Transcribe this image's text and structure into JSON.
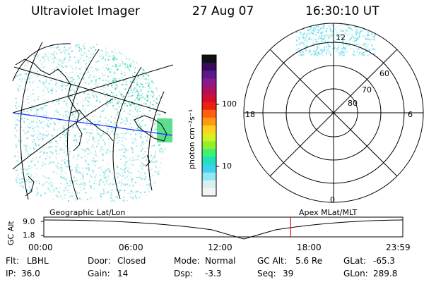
{
  "header": {
    "title": "Ultraviolet Imager",
    "date": "27 Aug 07",
    "time": "16:30:10 UT"
  },
  "colorbar": {
    "unit_label": "photon cm⁻²s⁻¹",
    "ticks": [
      "100",
      "10"
    ],
    "colors": [
      "#101010",
      "#3a0a5a",
      "#5a1a8a",
      "#8a1a8a",
      "#b01060",
      "#d01030",
      "#f02010",
      "#ff6010",
      "#ff9a10",
      "#ffd020",
      "#d8f020",
      "#90f030",
      "#40f070",
      "#20e0c0",
      "#40d0f0",
      "#90e8f0",
      "#d8f0f0",
      "#f4f4f4"
    ]
  },
  "polar": {
    "lat_labels": [
      "60",
      "70",
      "80"
    ],
    "mlt_labels": {
      "top": "12",
      "left": "18",
      "right": "6",
      "bottom": "0"
    }
  },
  "timeline": {
    "ylabel": "GC Alt",
    "ytick_top": "9.0",
    "ytick_bottom": "1.8",
    "left_caption": "Geographic Lat/Lon",
    "right_caption": "Apex MLat/MLT",
    "time_ticks": [
      "00:00",
      "06:00",
      "12:00",
      "18:00",
      "23:59"
    ],
    "current_time_fraction": 0.6876
  },
  "info": {
    "row1": [
      {
        "label": "Flt:",
        "value": "LBHL"
      },
      {
        "label": "Door:",
        "value": "Closed"
      },
      {
        "label": "Mode:",
        "value": "Normal"
      },
      {
        "label": "GC Alt:",
        "value": "5.6 Re"
      },
      {
        "label": "GLat:",
        "value": "-65.3"
      }
    ],
    "row2": [
      {
        "label": "IP:",
        "value": "36.0"
      },
      {
        "label": "Gain:",
        "value": "14"
      },
      {
        "label": "Dsp:",
        "value": "-3.3"
      },
      {
        "label": "Seq:",
        "value": "39"
      },
      {
        "label": "GLon:",
        "value": "289.8"
      }
    ]
  }
}
